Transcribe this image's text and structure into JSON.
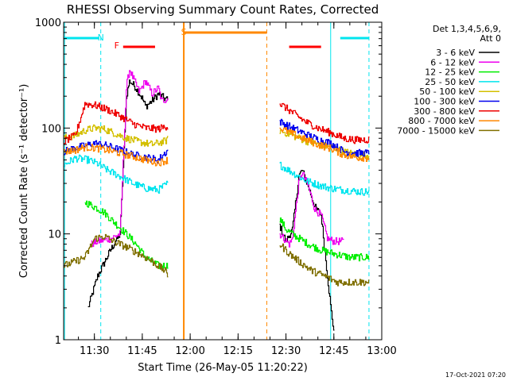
{
  "title": "RHESSI Observing Summary Count Rates, Corrected",
  "footer": {
    "timestamp": "17-Oct-2021 07:20"
  },
  "chart_data": {
    "type": "line",
    "title": "RHESSI Observing Summary Count Rates, Corrected",
    "xlabel": "Start Time (26-May-05 11:20:22)",
    "ylabel": "Corrected Count Rate (s⁻¹ detector⁻¹)",
    "x_start": "11:20:22",
    "x_end": "13:00",
    "x_ticks": [
      "11:30",
      "11:45",
      "12:00",
      "12:15",
      "12:30",
      "12:45",
      "13:00"
    ],
    "y_scale": "log",
    "ylim": [
      1,
      1000
    ],
    "y_ticks": [
      "1",
      "10",
      "100",
      "1000"
    ],
    "grid": false,
    "legend": {
      "position": "right",
      "header": "Det 1,3,4,5,6,9,",
      "subheader": "Att 0"
    },
    "markers": [
      {
        "label": "N",
        "color": "#00e5ee",
        "x": "11:32"
      },
      {
        "label": "F",
        "color": "#ff0000",
        "x": "11:37"
      },
      {
        "label": "S",
        "color": "#ff8800",
        "x": "11:58"
      }
    ],
    "bars": {
      "night": {
        "color": "#00e5ee",
        "ranges": [
          [
            "11:20:22",
            "11:31:30"
          ],
          [
            "12:47",
            "12:56"
          ]
        ]
      },
      "flare": {
        "color": "#ff0000",
        "ranges": [
          [
            "11:39",
            "11:49"
          ],
          [
            "12:31",
            "12:41"
          ]
        ]
      },
      "saa": {
        "color": "#ff8800",
        "ranges": [
          [
            "11:58",
            "12:24"
          ]
        ]
      }
    },
    "vlines": {
      "night_solid": {
        "color": "#00e5ee",
        "x": [
          "11:20:40",
          "12:44"
        ]
      },
      "night_dashed": {
        "color": "#00e5ee",
        "x": [
          "11:32",
          "12:56"
        ]
      },
      "saa_solid": {
        "color": "#ff8800",
        "x": [
          "11:58"
        ]
      },
      "saa_dashed": {
        "color": "#ff8800",
        "x": [
          "12:24"
        ]
      }
    },
    "series": [
      {
        "name": "3 - 6 keV",
        "color": "#000000",
        "points": [
          [
            "11:28",
            2.0
          ],
          [
            "11:31",
            4.0
          ],
          [
            "11:35",
            7.0
          ],
          [
            "11:38",
            10.0
          ],
          [
            "11:40",
            200
          ],
          [
            "11:41",
            280
          ],
          [
            "11:43",
            240
          ],
          [
            "11:45",
            190
          ],
          [
            "11:46",
            160
          ],
          [
            "11:48",
            180
          ],
          [
            "11:50",
            210
          ],
          [
            "11:52",
            190
          ],
          [
            "11:53",
            185
          ],
          null,
          [
            "12:28",
            12.0
          ],
          [
            "12:30",
            8.5
          ],
          [
            "12:32",
            11.0
          ],
          [
            "12:34",
            35.0
          ],
          [
            "12:35",
            40.0
          ],
          [
            "12:37",
            28.0
          ],
          [
            "12:39",
            18.0
          ],
          [
            "12:41",
            15.0
          ],
          [
            "12:44",
            2.0
          ],
          [
            "12:45",
            1.2
          ]
        ]
      },
      {
        "name": "6 - 12 keV",
        "color": "#ee00ee",
        "points": [
          [
            "11:29",
            8.0
          ],
          [
            "11:31",
            8.5
          ],
          [
            "11:35",
            9.0
          ],
          [
            "11:38",
            10.0
          ],
          [
            "11:40",
            250
          ],
          [
            "11:41",
            360
          ],
          [
            "11:42",
            300
          ],
          [
            "11:44",
            220
          ],
          [
            "11:46",
            280
          ],
          [
            "11:48",
            210
          ],
          [
            "11:50",
            240
          ],
          [
            "11:51",
            180
          ],
          [
            "11:53",
            190
          ],
          null,
          [
            "12:28",
            10.0
          ],
          [
            "12:31",
            8.0
          ],
          [
            "12:32",
            9.0
          ],
          [
            "12:34",
            30.0
          ],
          [
            "12:35",
            38.0
          ],
          [
            "12:37",
            28.0
          ],
          [
            "12:39",
            17.0
          ],
          [
            "12:41",
            15.0
          ],
          [
            "12:43",
            9.0
          ],
          [
            "12:45",
            8.5
          ],
          [
            "12:48",
            8.5
          ]
        ]
      },
      {
        "name": "12 - 25 keV",
        "color": "#00ee00",
        "points": [
          [
            "11:27",
            20.0
          ],
          [
            "11:30",
            18.0
          ],
          [
            "11:33",
            16.0
          ],
          [
            "11:36",
            13.0
          ],
          [
            "11:40",
            10.0
          ],
          [
            "11:43",
            8.0
          ],
          [
            "11:46",
            6.0
          ],
          [
            "11:50",
            5.0
          ],
          [
            "11:53",
            5.0
          ],
          null,
          [
            "12:28",
            14.0
          ],
          [
            "12:30",
            11.0
          ],
          [
            "12:33",
            9.5
          ],
          [
            "12:37",
            8.0
          ],
          [
            "12:41",
            7.0
          ],
          [
            "12:45",
            6.5
          ],
          [
            "12:50",
            6.0
          ],
          [
            "12:56",
            6.0
          ]
        ]
      },
      {
        "name": "25 - 50 keV",
        "color": "#00e5ee",
        "points": [
          [
            "11:20:30",
            45.0
          ],
          [
            "11:24",
            52.0
          ],
          [
            "11:28",
            50.0
          ],
          [
            "11:31",
            46.0
          ],
          [
            "11:34",
            40.0
          ],
          [
            "11:38",
            35.0
          ],
          [
            "11:42",
            30.0
          ],
          [
            "11:46",
            27.0
          ],
          [
            "11:50",
            26.0
          ],
          [
            "11:53",
            30.0
          ],
          null,
          [
            "12:28",
            45.0
          ],
          [
            "12:32",
            38.0
          ],
          [
            "12:36",
            32.0
          ],
          [
            "12:40",
            29.0
          ],
          [
            "12:44",
            27.0
          ],
          [
            "12:48",
            26.0
          ],
          [
            "12:53",
            25.0
          ],
          [
            "12:56",
            25.0
          ]
        ]
      },
      {
        "name": "50 - 100 keV",
        "color": "#d4c000",
        "points": [
          [
            "11:20:30",
            80.0
          ],
          [
            "11:24",
            85.0
          ],
          [
            "11:27",
            95.0
          ],
          [
            "11:30",
            100.0
          ],
          [
            "11:33",
            98.0
          ],
          [
            "11:36",
            90.0
          ],
          [
            "11:40",
            80.0
          ],
          [
            "11:44",
            74.0
          ],
          [
            "11:48",
            70.0
          ],
          [
            "11:52",
            75.0
          ],
          [
            "11:53",
            78.0
          ],
          null,
          [
            "12:28",
            95.0
          ],
          [
            "12:32",
            85.0
          ],
          [
            "12:36",
            76.0
          ],
          [
            "12:40",
            70.0
          ],
          [
            "12:44",
            66.0
          ],
          [
            "12:48",
            60.0
          ],
          [
            "12:52",
            56.0
          ],
          [
            "12:56",
            55.0
          ]
        ]
      },
      {
        "name": "100 - 300 keV",
        "color": "#0000ee",
        "points": [
          [
            "11:20:30",
            60.0
          ],
          [
            "11:24",
            65.0
          ],
          [
            "11:27",
            68.0
          ],
          [
            "11:30",
            72.0
          ],
          [
            "11:34",
            68.0
          ],
          [
            "11:38",
            62.0
          ],
          [
            "11:42",
            56.0
          ],
          [
            "11:46",
            53.0
          ],
          [
            "11:50",
            50.0
          ],
          [
            "11:53",
            62.0
          ],
          null,
          [
            "12:28",
            115.0
          ],
          [
            "12:32",
            100.0
          ],
          [
            "12:36",
            88.0
          ],
          [
            "12:40",
            78.0
          ],
          [
            "12:44",
            72.0
          ],
          [
            "12:48",
            60.0
          ],
          [
            "12:52",
            58.0
          ],
          [
            "12:56",
            58.0
          ]
        ]
      },
      {
        "name": "300 - 800 keV",
        "color": "#ee0000",
        "points": [
          [
            "11:20:30",
            75.0
          ],
          [
            "11:24",
            85.0
          ],
          [
            "11:27",
            170.0
          ],
          [
            "11:30",
            165.0
          ],
          [
            "11:34",
            150.0
          ],
          [
            "11:38",
            130.0
          ],
          [
            "11:42",
            110.0
          ],
          [
            "11:46",
            100.0
          ],
          [
            "11:50",
            98.0
          ],
          [
            "11:53",
            105.0
          ],
          null,
          [
            "12:28",
            170.0
          ],
          [
            "12:32",
            140.0
          ],
          [
            "12:36",
            115.0
          ],
          [
            "12:40",
            100.0
          ],
          [
            "12:44",
            90.0
          ],
          [
            "12:48",
            80.0
          ],
          [
            "12:52",
            77.0
          ],
          [
            "12:56",
            78.0
          ]
        ]
      },
      {
        "name": "800 - 7000 keV",
        "color": "#ff8800",
        "points": [
          [
            "11:20:30",
            60.0
          ],
          [
            "11:24",
            62.0
          ],
          [
            "11:27",
            66.0
          ],
          [
            "11:30",
            65.0
          ],
          [
            "11:34",
            62.0
          ],
          [
            "11:38",
            58.0
          ],
          [
            "11:42",
            54.0
          ],
          [
            "11:46",
            50.0
          ],
          [
            "11:50",
            47.0
          ],
          [
            "11:53",
            50.0
          ],
          null,
          [
            "12:28",
            100.0
          ],
          [
            "12:32",
            88.0
          ],
          [
            "12:36",
            78.0
          ],
          [
            "12:40",
            70.0
          ],
          [
            "12:44",
            64.0
          ],
          [
            "12:48",
            56.0
          ],
          [
            "12:52",
            53.0
          ],
          [
            "12:56",
            52.0
          ]
        ]
      },
      {
        "name": "7000 - 15000 keV",
        "color": "#807000",
        "points": [
          [
            "11:20:30",
            5.0
          ],
          [
            "11:24",
            5.5
          ],
          [
            "11:27",
            6.0
          ],
          [
            "11:30",
            9.0
          ],
          [
            "11:33",
            9.5
          ],
          [
            "11:36",
            8.5
          ],
          [
            "11:40",
            7.5
          ],
          [
            "11:44",
            6.5
          ],
          [
            "11:48",
            5.5
          ],
          [
            "11:52",
            4.5
          ],
          [
            "11:53",
            4.0
          ],
          null,
          [
            "12:28",
            8.0
          ],
          [
            "12:31",
            6.5
          ],
          [
            "12:34",
            5.5
          ],
          [
            "12:38",
            4.5
          ],
          [
            "12:42",
            4.0
          ],
          [
            "12:46",
            3.5
          ],
          [
            "12:50",
            3.5
          ],
          [
            "12:56",
            3.5
          ]
        ]
      }
    ]
  }
}
